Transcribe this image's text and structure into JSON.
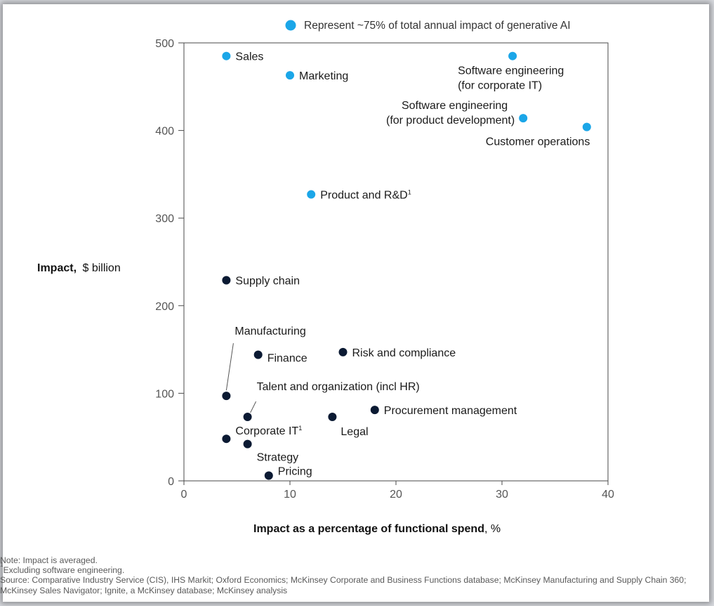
{
  "chart_data": {
    "type": "scatter",
    "xlabel": "Impact as a percentage of functional spend",
    "xlabel_unit": "%",
    "ylabel": "Impact,",
    "ylabel_unit": "$ billion",
    "xlim": [
      0,
      40
    ],
    "ylim": [
      0,
      500
    ],
    "x_ticks": [
      0,
      10,
      20,
      30,
      40
    ],
    "y_ticks": [
      0,
      100,
      200,
      300,
      400,
      500
    ],
    "grid": false,
    "legend": {
      "label": "Represent ~75% of total annual impact of generative AI",
      "color": "#1ba6e8",
      "placement": "top"
    },
    "colors": {
      "highlight": "#1ba6e8",
      "other": "#0b1a33"
    },
    "points": [
      {
        "label": "Sales",
        "x": 4,
        "y": 485,
        "group": "highlight"
      },
      {
        "label": "Marketing",
        "x": 10,
        "y": 463,
        "group": "highlight"
      },
      {
        "label": "Software engineering\n(for corporate IT)",
        "x": 31,
        "y": 485,
        "group": "highlight"
      },
      {
        "label": "Software engineering\n(for product development)",
        "x": 32,
        "y": 414,
        "group": "highlight"
      },
      {
        "label": "Customer operations",
        "x": 38,
        "y": 404,
        "group": "highlight"
      },
      {
        "label": "Product and R&D",
        "sup": "1",
        "x": 12,
        "y": 327,
        "group": "highlight"
      },
      {
        "label": "Supply chain",
        "x": 4,
        "y": 229,
        "group": "other"
      },
      {
        "label": "Manufacturing",
        "x": 4,
        "y": 97,
        "group": "other"
      },
      {
        "label": "Finance",
        "x": 7,
        "y": 144,
        "group": "other"
      },
      {
        "label": "Risk and compliance",
        "x": 15,
        "y": 147,
        "group": "other"
      },
      {
        "label": "Talent and organization (incl HR)",
        "x": 6,
        "y": 73,
        "group": "other"
      },
      {
        "label": "Procurement management",
        "x": 18,
        "y": 81,
        "group": "other"
      },
      {
        "label": "Legal",
        "x": 14,
        "y": 73,
        "group": "other"
      },
      {
        "label": "Corporate IT",
        "sup": "1",
        "x": 4,
        "y": 48,
        "group": "other"
      },
      {
        "label": "Strategy",
        "x": 6,
        "y": 42,
        "group": "other"
      },
      {
        "label": "Pricing",
        "x": 8,
        "y": 6,
        "group": "other"
      }
    ]
  },
  "notes": {
    "note": "Note: Impact is averaged.",
    "footnote_mark": "1",
    "footnote": "Excluding software engineering.",
    "source": "Source: Comparative Industry Service (CIS), IHS Markit; Oxford Economics; McKinsey Corporate and Business Functions database; McKinsey Manufacturing and Supply Chain 360; McKinsey Sales Navigator; Ignite, a McKinsey database; McKinsey analysis"
  }
}
